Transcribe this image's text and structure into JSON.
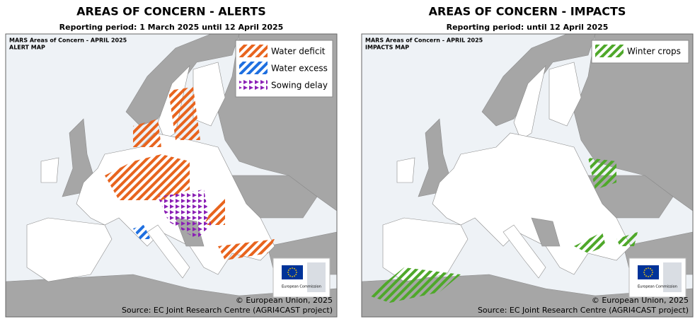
{
  "panels": [
    {
      "title": "AREAS OF CONCERN - ALERTS",
      "subtitle": "Reporting period: 1 March 2025 until 12 April 2025",
      "map_title": "MARS Areas of Concern - APRIL 2025",
      "map_subtitle": "ALERT MAP",
      "legend": [
        {
          "label": "Water deficit",
          "color": "#e8641e",
          "style": "stripes"
        },
        {
          "label": "Water excess",
          "color": "#1e6fe0",
          "style": "stripes"
        },
        {
          "label": "Sowing delay",
          "color": "#8a1fb5",
          "style": "triangles"
        }
      ],
      "logo_text": "European Commission",
      "copyright": "© European Union, 2025",
      "source": "Source: EC Joint Research Centre (AGRI4CAST project)"
    },
    {
      "title": "AREAS OF CONCERN - IMPACTS",
      "subtitle": "Reporting period: until 12 April 2025",
      "map_title": "MARS Areas of Concern - APRIL 2025",
      "map_subtitle": "IMPACTS MAP",
      "legend": [
        {
          "label": "Winter crops",
          "color": "#4fa82a",
          "style": "stripes"
        }
      ],
      "logo_text": "European Commission",
      "copyright": "© European Union, 2025",
      "source": "Source: EC Joint Research Centre (AGRI4CAST project)"
    }
  ]
}
